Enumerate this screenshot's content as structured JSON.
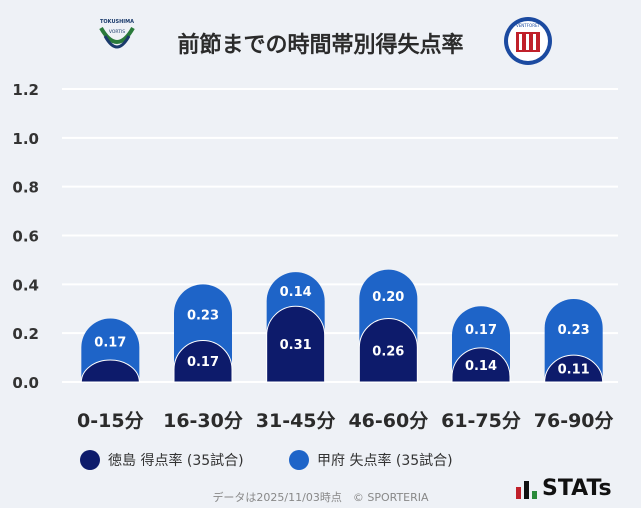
{
  "header": {
    "title": "前節までの時間帯別得失点率",
    "home_logo_text": "TOKUSHIMA VORTIS",
    "away_logo_text": "VENTFORET KOFU"
  },
  "chart_data": {
    "type": "bar",
    "title": "前節までの時間帯別得失点率",
    "categories": [
      "0-15分",
      "16-30分",
      "31-45分",
      "46-60分",
      "61-75分",
      "76-90分"
    ],
    "series": [
      {
        "name": "徳島 得点率 (35試合)",
        "values": [
          0.09,
          0.17,
          0.31,
          0.26,
          0.14,
          0.11
        ],
        "color": "#0d1b6b"
      },
      {
        "name": "甲府 失点率 (35試合)",
        "values": [
          0.17,
          0.23,
          0.14,
          0.2,
          0.17,
          0.23
        ],
        "color": "#1e64c8"
      }
    ],
    "value_labels_home": [
      "",
      "0.17",
      "0.31",
      "0.26",
      "0.14",
      "0.11"
    ],
    "value_labels_away": [
      "0.17",
      "0.23",
      "0.14",
      "0.20",
      "0.17",
      "0.23"
    ],
    "stacked": true,
    "ylim": [
      0,
      1.2
    ],
    "yticks": [
      "0.0",
      "0.2",
      "0.4",
      "0.6",
      "0.8",
      "1.0",
      "1.2"
    ],
    "grid": true,
    "xlabel": "",
    "ylabel": ""
  },
  "legend": {
    "home_label": "徳島 得点率 (35試合)",
    "away_label": "甲府 失点率 (35試合)",
    "home_color": "#0d1b6b",
    "away_color": "#1e64c8"
  },
  "footer": {
    "note": "データは2025/11/03時点　© SPORTERIA",
    "brand": "STATs"
  }
}
